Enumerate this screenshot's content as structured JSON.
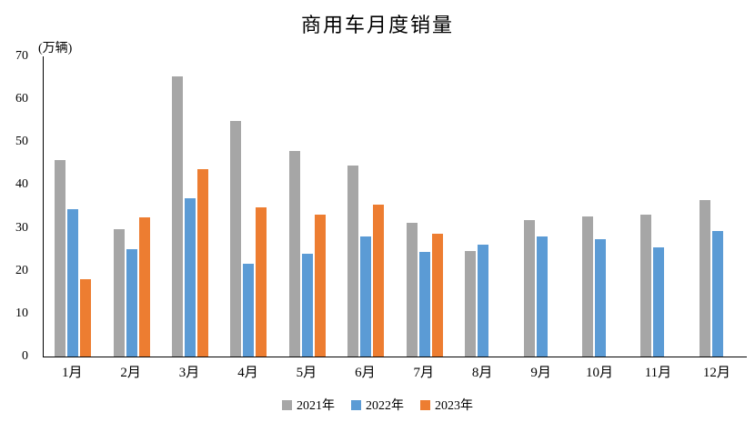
{
  "chart_data": {
    "type": "bar",
    "title": "商用车月度销量",
    "unit_label": "(万辆)",
    "categories": [
      "1月",
      "2月",
      "3月",
      "4月",
      "5月",
      "6月",
      "7月",
      "8月",
      "9月",
      "10月",
      "11月",
      "12月"
    ],
    "series": [
      {
        "name": "2021年",
        "color": "#A6A6A6",
        "values": [
          45.8,
          29.7,
          65.3,
          55.0,
          48.0,
          44.6,
          31.2,
          24.6,
          31.8,
          32.6,
          33.0,
          36.4
        ]
      },
      {
        "name": "2022年",
        "color": "#5B9BD5",
        "values": [
          34.4,
          25.0,
          37.0,
          21.7,
          24.0,
          28.1,
          24.5,
          26.0,
          28.0,
          27.3,
          25.4,
          29.2
        ]
      },
      {
        "name": "2023年",
        "color": "#ED7D31",
        "values": [
          18.1,
          32.4,
          43.7,
          34.8,
          33.0,
          35.5,
          28.7,
          null,
          null,
          null,
          null,
          null
        ]
      }
    ],
    "xlabel": "",
    "ylabel": "(万辆)",
    "ylim": [
      0,
      70
    ],
    "ytick_step": 10,
    "grid": false,
    "legend_position": "bottom",
    "axis_color": "#000000",
    "background_color": "#FFFFFF"
  }
}
